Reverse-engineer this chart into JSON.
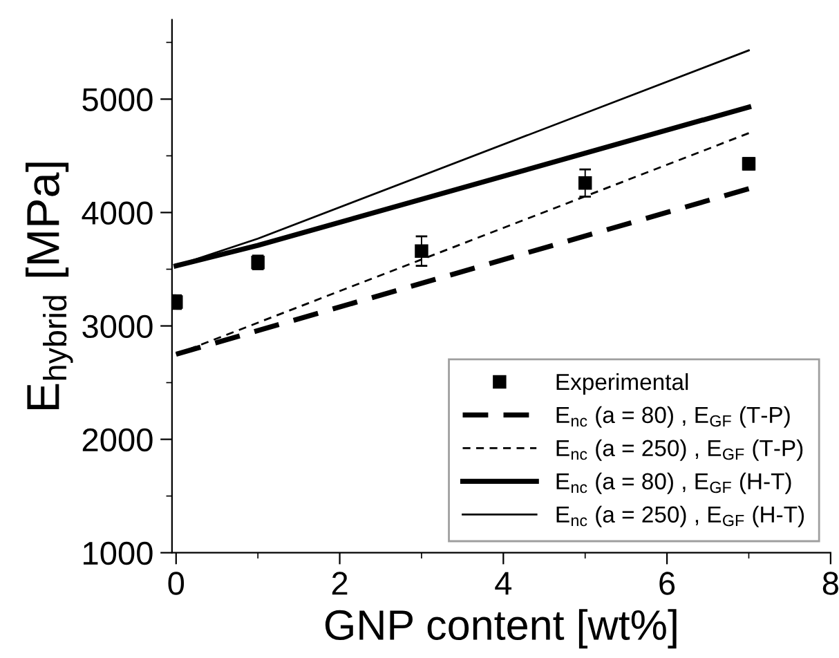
{
  "chart_data": {
    "type": "line",
    "xlabel": "GNP content [wt%]",
    "ylabel": "E$_{hybrid}$ [MPa]",
    "xlim": [
      -0.05,
      8
    ],
    "xticks": [
      0,
      2,
      4,
      6,
      8
    ],
    "ylim": [
      1000,
      5700
    ],
    "yticks": [
      1000,
      2000,
      3000,
      4000,
      5000
    ],
    "grid": false,
    "legend": "bottom right",
    "series": [
      {
        "name": "Experimental",
        "type": "scatter",
        "marker": "square",
        "color": "#000000",
        "x": [
          0,
          1,
          3,
          5,
          7
        ],
        "values": [
          3210,
          3560,
          3660,
          4260,
          4430
        ],
        "errors": [
          60,
          60,
          130,
          120,
          50
        ]
      },
      {
        "name": "E$_{nc}$ (a = 80) , E$_{GF}$ (T-P)",
        "color": "#000000",
        "line_style": "dashed",
        "x": [
          0,
          7
        ],
        "values": [
          2750,
          4210
        ]
      },
      {
        "name": "E$_{nc}$ (a = 250) , E$_{GF}$ (T-P)",
        "color": "#000000",
        "line_style": "dashed",
        "x": [
          0,
          7
        ],
        "values": [
          2750,
          4700
        ]
      },
      {
        "name": "E$_{nc}$ (a = 80) , E$_{GF}$ (H-T)",
        "color": "#000000",
        "line_style": "solid",
        "x": [
          0,
          1,
          7
        ],
        "values": [
          3530,
          3710,
          4930
        ]
      },
      {
        "name": "E$_{nc}$ (a = 250) , E$_{GF}$ (H-T)",
        "color": "#000000",
        "line_style": "solid",
        "x": [
          0,
          1,
          7
        ],
        "values": [
          3530,
          3770,
          5430
        ]
      }
    ]
  }
}
